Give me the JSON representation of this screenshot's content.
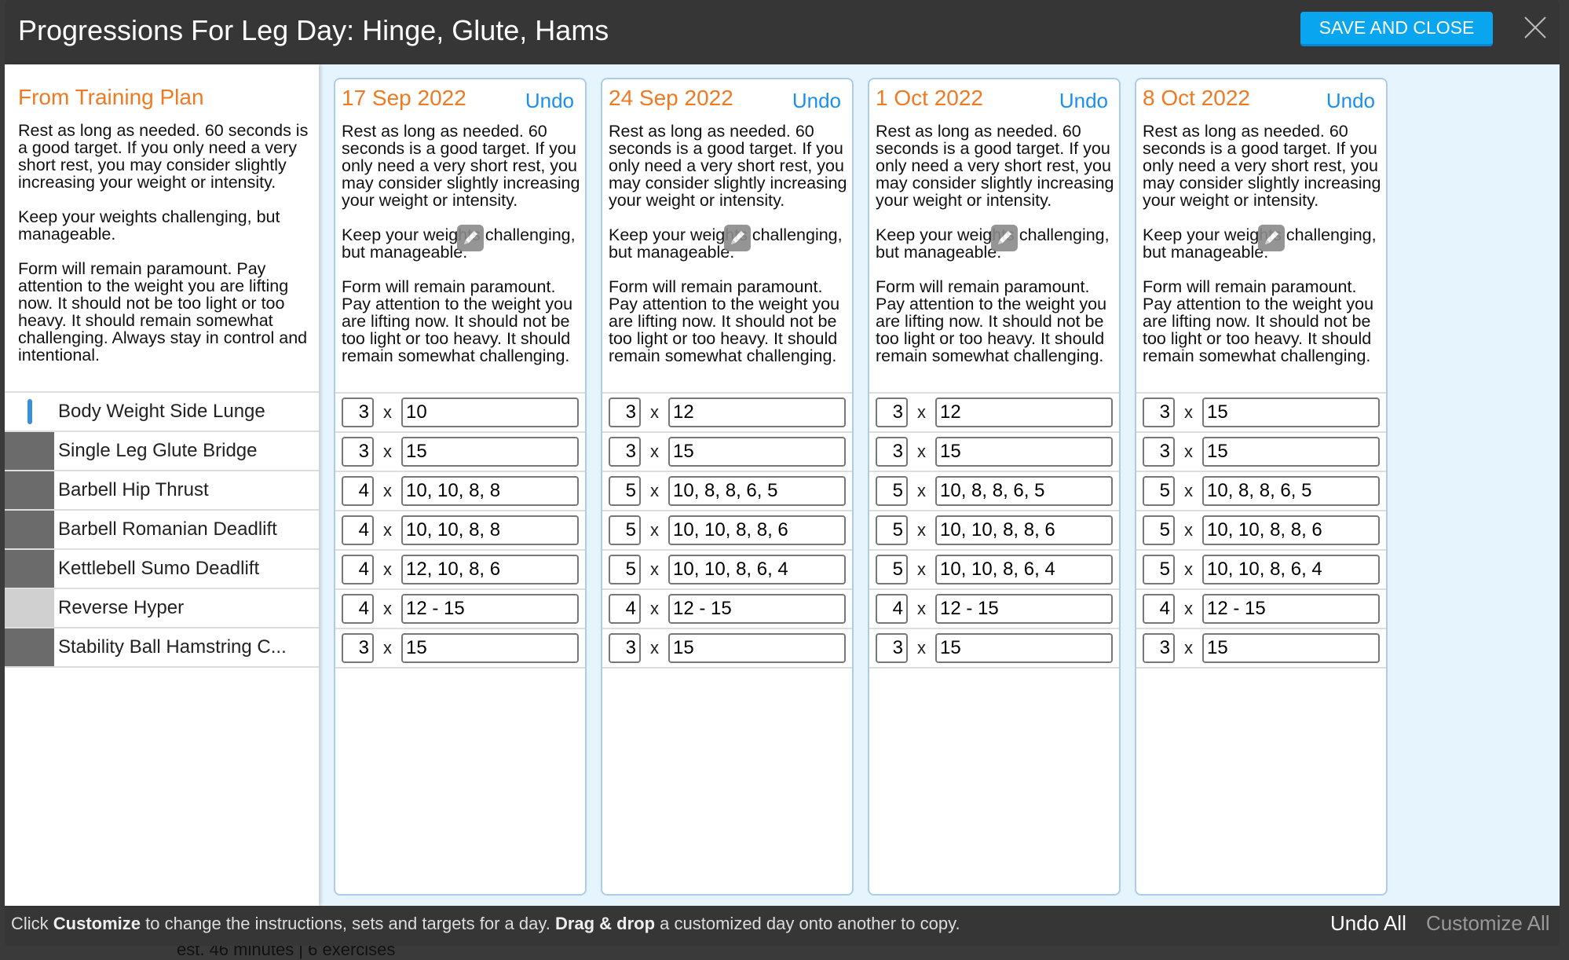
{
  "header": {
    "title": "Progressions For Leg Day: Hinge, Glute, Hams",
    "save_label": "SAVE AND CLOSE"
  },
  "plan": {
    "heading": "From Training Plan",
    "instructions": "Rest as long as needed. 60 seconds is a good target. If you only need a very short rest, you may consider slightly increasing your weight or intensity.\n\nKeep your weights challenging, but manageable.\n\nForm will remain paramount. Pay attention to the weight you are lifting now. It should not be too light or too heavy. It should remain somewhat challenging. Always stay in control and intentional."
  },
  "exercises": [
    {
      "name": "Body Weight Side Lunge",
      "thumb": "white"
    },
    {
      "name": "Single Leg Glute Bridge",
      "thumb": "photo"
    },
    {
      "name": "Barbell Hip Thrust",
      "thumb": "photo"
    },
    {
      "name": "Barbell Romanian Deadlift",
      "thumb": "photo"
    },
    {
      "name": "Kettlebell Sumo Deadlift",
      "thumb": "photo"
    },
    {
      "name": "Reverse Hyper",
      "thumb": "blank"
    },
    {
      "name": "Stability Ball Hamstring C...",
      "thumb": "photo"
    }
  ],
  "days": [
    {
      "date": "17 Sep 2022",
      "undo": "Undo",
      "instructions": "Rest as long as needed. 60 seconds is a good target. If you only need a very short rest, you may consider slightly increasing your weight or intensity.\n\nKeep your weights challenging, but manageable.\n\nForm will remain paramount. Pay attention to the weight you are lifting now. It should not be too light or too heavy. It should remain somewhat challenging.",
      "rows": [
        [
          "3",
          "10"
        ],
        [
          "3",
          "15"
        ],
        [
          "4",
          "10, 10, 8, 8"
        ],
        [
          "4",
          "10, 10, 8, 8"
        ],
        [
          "4",
          "12, 10, 8, 6"
        ],
        [
          "4",
          "12 - 15"
        ],
        [
          "3",
          "15"
        ]
      ]
    },
    {
      "date": "24 Sep 2022",
      "undo": "Undo",
      "instructions": "Rest as long as needed. 60 seconds is a good target. If you only need a very short rest, you may consider slightly increasing your weight or intensity.\n\nKeep your weights challenging, but manageable.\n\nForm will remain paramount. Pay attention to the weight you are lifting now. It should not be too light or too heavy. It should remain somewhat challenging.",
      "rows": [
        [
          "3",
          "12"
        ],
        [
          "3",
          "15"
        ],
        [
          "5",
          "10, 8, 8, 6, 5"
        ],
        [
          "5",
          "10, 10, 8, 8, 6"
        ],
        [
          "5",
          "10, 10, 8, 6, 4"
        ],
        [
          "4",
          "12 - 15"
        ],
        [
          "3",
          "15"
        ]
      ]
    },
    {
      "date": "1 Oct 2022",
      "undo": "Undo",
      "instructions": "Rest as long as needed. 60 seconds is a good target. If you only need a very short rest, you may consider slightly increasing your weight or intensity.\n\nKeep your weights challenging, but manageable.\n\nForm will remain paramount. Pay attention to the weight you are lifting now. It should not be too light or too heavy. It should remain somewhat challenging.",
      "rows": [
        [
          "3",
          "12"
        ],
        [
          "3",
          "15"
        ],
        [
          "5",
          "10, 8, 8, 6, 5"
        ],
        [
          "5",
          "10, 10, 8, 8, 6"
        ],
        [
          "5",
          "10, 10, 8, 6, 4"
        ],
        [
          "4",
          "12 - 15"
        ],
        [
          "3",
          "15"
        ]
      ]
    },
    {
      "date": "8 Oct 2022",
      "undo": "Undo",
      "instructions": "Rest as long as needed. 60 seconds is a good target. If you only need a very short rest, you may consider slightly increasing your weight or intensity.\n\nKeep your weights challenging, but manageable.\n\nForm will remain paramount. Pay attention to the weight you are lifting now. It should not be too light or too heavy. It should remain somewhat challenging.",
      "rows": [
        [
          "3",
          "15"
        ],
        [
          "3",
          "15"
        ],
        [
          "5",
          "10, 8, 8, 6, 5"
        ],
        [
          "5",
          "10, 10, 8, 8, 6"
        ],
        [
          "5",
          "10, 10, 8, 6, 4"
        ],
        [
          "4",
          "12 - 15"
        ],
        [
          "3",
          "15"
        ]
      ]
    }
  ],
  "times_symbol": "x",
  "footer": {
    "pre": "Click ",
    "b1": "Customize",
    "mid": " to change the instructions, sets and targets for a day. ",
    "b2": "Drag & drop",
    "post": " a customized day onto another to copy.",
    "undo_all": "Undo All",
    "customize_all": "Customize All"
  },
  "background_text": "est. 46 minutes | 6 exercises",
  "colors": {
    "accent_orange": "#f07a22",
    "link_blue": "#1a8ff0",
    "save_blue": "#0aa5ef"
  }
}
